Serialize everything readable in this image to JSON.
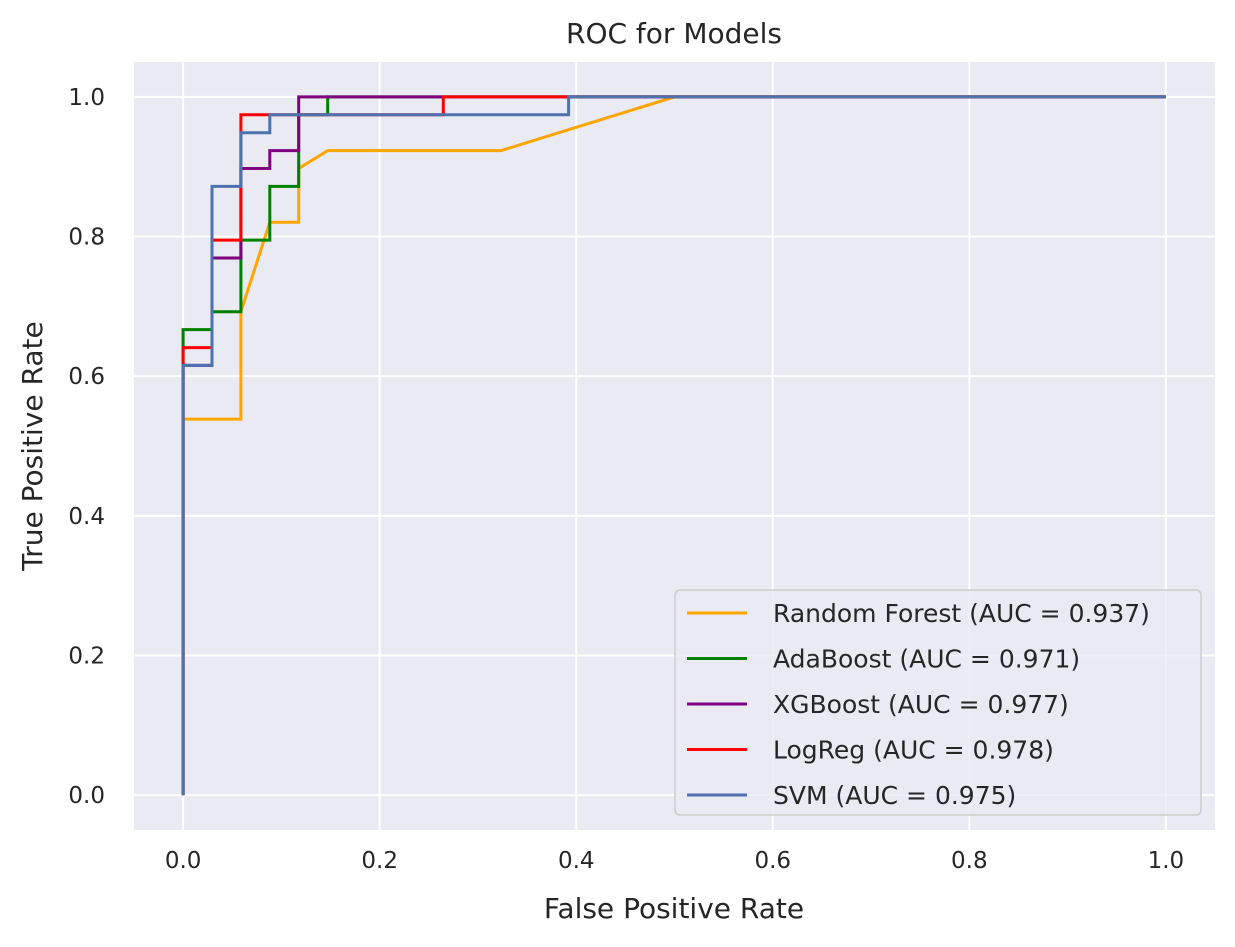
{
  "chart_data": {
    "type": "line",
    "title": "ROC for Models",
    "xlabel": "False Positive Rate",
    "ylabel": "True Positive Rate",
    "xlim": [
      -0.05,
      1.05
    ],
    "ylim": [
      -0.05,
      1.05
    ],
    "xticks": [
      0.0,
      0.2,
      0.4,
      0.6,
      0.8,
      1.0
    ],
    "yticks": [
      0.0,
      0.2,
      0.4,
      0.6,
      0.8,
      1.0
    ],
    "xtick_labels": [
      "0.0",
      "0.2",
      "0.4",
      "0.6",
      "0.8",
      "1.0"
    ],
    "ytick_labels": [
      "0.0",
      "0.2",
      "0.4",
      "0.6",
      "0.8",
      "1.0"
    ],
    "grid": true,
    "background": "#eaeaf2",
    "legend_position": "lower-right",
    "series": [
      {
        "name": "Random Forest (AUC = 0.937)",
        "color": "#ffa500",
        "x": [
          0.0,
          0.0,
          0.0588,
          0.0588,
          0.0882,
          0.1176,
          0.1176,
          0.1471,
          0.3235,
          0.5,
          1.0
        ],
        "y": [
          0.0,
          0.5385,
          0.5385,
          0.6923,
          0.8205,
          0.8205,
          0.8974,
          0.9231,
          0.9231,
          1.0,
          1.0
        ]
      },
      {
        "name": "AdaBoost (AUC = 0.971)",
        "color": "#008000",
        "x": [
          0.0,
          0.0,
          0.0294,
          0.0294,
          0.0588,
          0.0588,
          0.0882,
          0.0882,
          0.1176,
          0.1176,
          0.1471,
          0.1471,
          1.0
        ],
        "y": [
          0.0,
          0.6667,
          0.6667,
          0.6923,
          0.6923,
          0.7949,
          0.7949,
          0.8718,
          0.8718,
          0.9744,
          0.9744,
          1.0,
          1.0
        ]
      },
      {
        "name": "XGBoost (AUC = 0.977)",
        "color": "#800080",
        "x": [
          0.0,
          0.0,
          0.0294,
          0.0294,
          0.0588,
          0.0588,
          0.0882,
          0.0882,
          0.1176,
          0.1176,
          1.0
        ],
        "y": [
          0.0,
          0.6154,
          0.6154,
          0.7692,
          0.7692,
          0.8974,
          0.8974,
          0.9231,
          0.9231,
          1.0,
          1.0
        ]
      },
      {
        "name": "LogReg (AUC = 0.978)",
        "color": "#ff0000",
        "x": [
          0.0,
          0.0,
          0.0294,
          0.0294,
          0.0588,
          0.0588,
          0.0882,
          0.0882,
          0.2647,
          0.2647,
          1.0
        ],
        "y": [
          0.0,
          0.641,
          0.641,
          0.7949,
          0.7949,
          0.9744,
          0.9744,
          0.9744,
          0.9744,
          1.0,
          1.0
        ]
      },
      {
        "name": "SVM (AUC = 0.975)",
        "color": "#4c72b0",
        "x": [
          0.0,
          0.0,
          0.0294,
          0.0294,
          0.0588,
          0.0588,
          0.0882,
          0.0882,
          0.3922,
          0.3922,
          1.0
        ],
        "y": [
          0.0,
          0.6154,
          0.6154,
          0.8718,
          0.8718,
          0.9487,
          0.9487,
          0.9744,
          0.9744,
          1.0,
          1.0
        ]
      }
    ]
  }
}
